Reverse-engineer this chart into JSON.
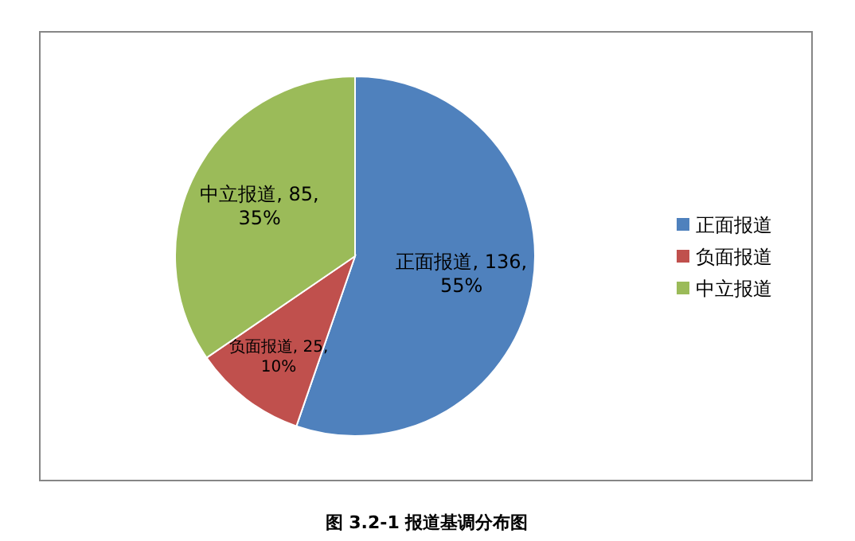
{
  "chart_data": {
    "type": "pie",
    "categories": [
      "正面报道",
      "负面报道",
      "中立报道"
    ],
    "values": [
      136,
      25,
      85
    ],
    "value_labels": [
      "正面报道, 136, 55%",
      "负面报道, 25, 10%",
      "中立报道, 85, 35%"
    ],
    "colors": [
      "#4f81bd",
      "#c0504d",
      "#9bbb59"
    ],
    "legend": "right",
    "annotations": [
      "图 3.2-1 报道基调分布图"
    ]
  }
}
